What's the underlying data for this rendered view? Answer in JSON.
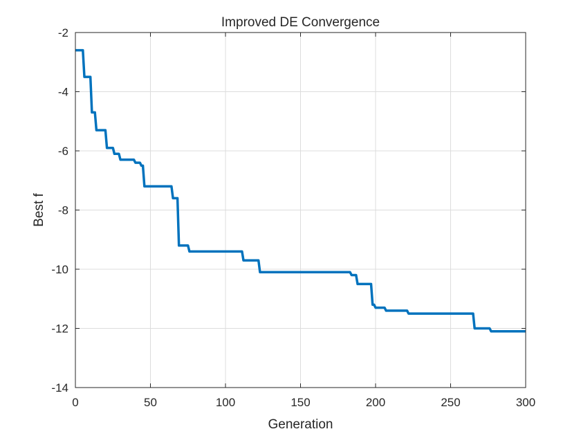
{
  "chart_data": {
    "type": "line",
    "title": "Improved DE Convergence",
    "xlabel": "Generation",
    "ylabel": "Best f",
    "xlim": [
      0,
      300
    ],
    "ylim": [
      -14,
      -2
    ],
    "xticks": [
      0,
      50,
      100,
      150,
      200,
      250,
      300
    ],
    "yticks": [
      -14,
      -12,
      -10,
      -8,
      -6,
      -4,
      -2
    ],
    "grid": true,
    "line_color": "#0072BD",
    "series": [
      {
        "x": [
          0,
          5,
          6,
          10,
          11,
          12,
          13,
          14,
          15,
          20,
          21,
          25,
          26,
          29,
          30,
          39,
          40,
          43,
          44,
          45,
          46,
          64,
          65,
          68,
          69,
          72,
          73,
          75,
          76,
          111,
          112,
          120,
          121,
          122,
          123,
          183,
          184,
          187,
          188,
          189,
          190,
          197,
          198,
          199,
          200,
          206,
          207,
          221,
          222,
          265,
          266,
          276,
          277,
          300
        ],
        "y": [
          -2.6,
          -2.6,
          -3.5,
          -3.5,
          -4.7,
          -4.7,
          -4.7,
          -5.3,
          -5.3,
          -5.3,
          -5.9,
          -5.9,
          -6.1,
          -6.1,
          -6.3,
          -6.3,
          -6.4,
          -6.4,
          -6.5,
          -6.5,
          -7.2,
          -7.2,
          -7.6,
          -7.6,
          -9.2,
          -9.2,
          -9.2,
          -9.2,
          -9.4,
          -9.4,
          -9.7,
          -9.7,
          -9.7,
          -9.7,
          -10.1,
          -10.1,
          -10.2,
          -10.2,
          -10.5,
          -10.5,
          -10.5,
          -10.5,
          -11.2,
          -11.2,
          -11.3,
          -11.3,
          -11.4,
          -11.4,
          -11.5,
          -11.5,
          -12.0,
          -12.0,
          -12.1,
          -12.1
        ]
      }
    ]
  }
}
